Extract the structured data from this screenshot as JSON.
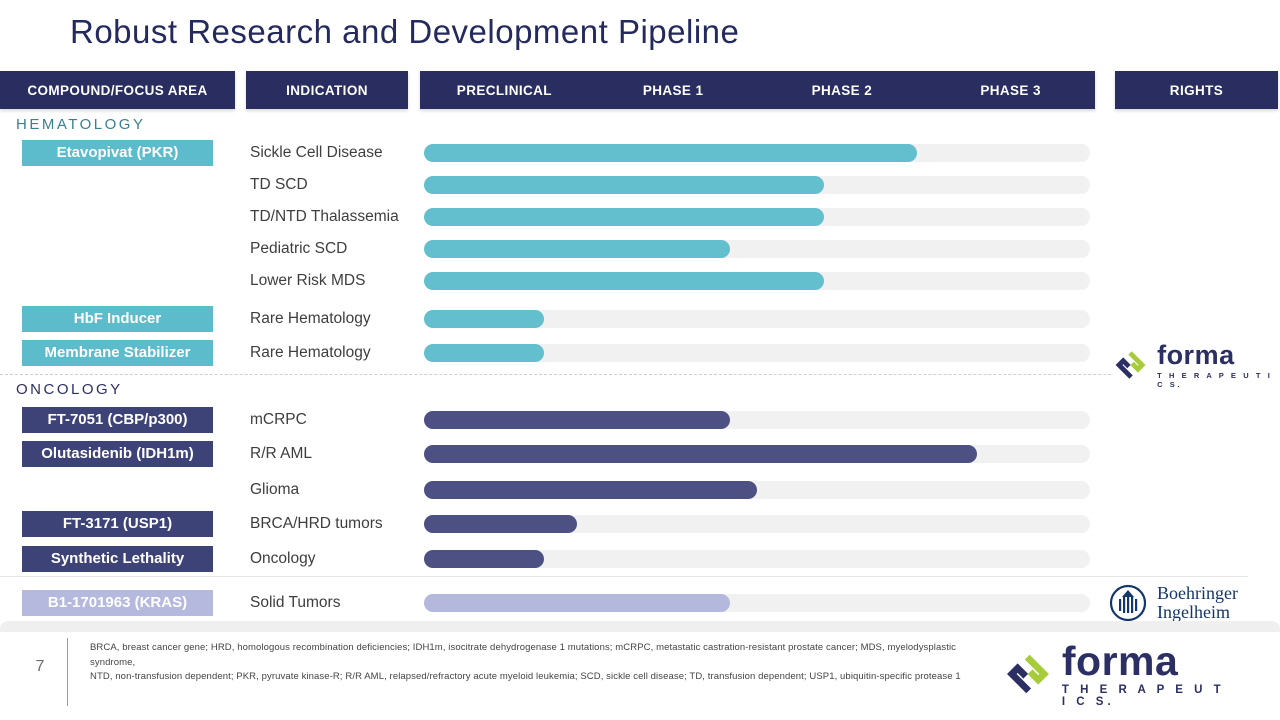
{
  "slide": {
    "title": "Robust Research and Development Pipeline",
    "page_number": "7"
  },
  "header": {
    "compound_col": "COMPOUND/FOCUS AREA",
    "indication_col": "INDICATION",
    "phases": [
      "PRECLINICAL",
      "PHASE 1",
      "PHASE 2",
      "PHASE 3"
    ],
    "rights_col": "RIGHTS"
  },
  "colors": {
    "header_navy": "#2A2D60",
    "title_navy": "#242A5E",
    "teal_badge": "#5CBCCB",
    "teal_bar": "#63BFCE",
    "navy_badge": "#3E4377",
    "navy_bar": "#4C5083",
    "lavender": "#B5B9DD",
    "track_gray": "#F1F1F1",
    "section_teal": "#39808F",
    "section_navy": "#2B2F63",
    "forma_green": "#A6CC39",
    "forma_navy": "#2B2F63",
    "boehringer_navy": "#14366B"
  },
  "chart_data": {
    "type": "bar",
    "orientation": "horizontal",
    "title": "Robust Research and Development Pipeline",
    "phase_axis": [
      "PRECLINICAL",
      "PHASE 1",
      "PHASE 2",
      "PHASE 3"
    ],
    "value_meaning": "progress along pipeline track, percent of full PRECLINICAL-to-PHASE-3 span",
    "track_range_pct": [
      0,
      100
    ],
    "grid": false,
    "groups": [
      {
        "label": "HEMATOLOGY",
        "theme": "teal",
        "bars": [
          {
            "compound": "Etavopivat (PKR)",
            "indication": "Sickle Cell Disease",
            "progress_pct": 74
          },
          {
            "compound": "",
            "indication": "TD SCD",
            "progress_pct": 60
          },
          {
            "compound": "",
            "indication": "TD/NTD Thalassemia",
            "progress_pct": 60
          },
          {
            "compound": "",
            "indication": "Pediatric SCD",
            "progress_pct": 46
          },
          {
            "compound": "",
            "indication": "Lower Risk MDS",
            "progress_pct": 60
          },
          {
            "compound": "HbF Inducer",
            "indication": "Rare Hematology",
            "progress_pct": 18
          },
          {
            "compound": "Membrane Stabilizer",
            "indication": "Rare Hematology",
            "progress_pct": 18
          }
        ]
      },
      {
        "label": "ONCOLOGY",
        "theme": "navy",
        "bars": [
          {
            "compound": "FT-7051 (CBP/p300)",
            "indication": "mCRPC",
            "progress_pct": 46
          },
          {
            "compound": "Olutasidenib (IDH1m)",
            "indication": "R/R AML",
            "progress_pct": 83
          },
          {
            "compound": "",
            "indication": "Glioma",
            "progress_pct": 50
          },
          {
            "compound": "FT-3171 (USP1)",
            "indication": "BRCA/HRD tumors",
            "progress_pct": 23
          },
          {
            "compound": "Synthetic Lethality",
            "indication": "Oncology",
            "progress_pct": 18
          }
        ]
      },
      {
        "label": "",
        "theme": "lavender",
        "bars": [
          {
            "compound": "B1-1701963 (KRAS)",
            "indication": "Solid Tumors",
            "progress_pct": 46,
            "rights": "Boehringer Ingelheim"
          }
        ]
      }
    ]
  },
  "logos": {
    "forma": {
      "word": "forma",
      "tagline": "T H E R A P E U T I C S."
    },
    "boehringer": {
      "line1": "Boehringer",
      "line2": "Ingelheim"
    }
  },
  "footnote": {
    "line1": "BRCA, breast cancer gene; HRD, homologous recombination deficiencies; IDH1m, isocitrate dehydrogenase 1 mutations; mCRPC, metastatic castration-resistant prostate cancer;  MDS, myelodysplastic syndrome,",
    "line2": "NTD, non-transfusion dependent; PKR, pyruvate kinase-R; R/R AML, relapsed/refractory acute myeloid leukemia; SCD, sickle cell disease; TD, transfusion dependent; USP1, ubiquitin-specific protease 1"
  }
}
